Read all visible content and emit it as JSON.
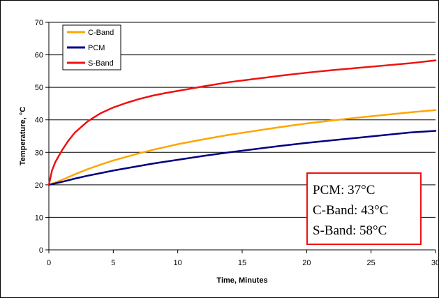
{
  "chart_data": {
    "type": "line",
    "title": "",
    "xlabel": "Time, Minutes",
    "ylabel": "Temperature, °C",
    "xlim": [
      0,
      30
    ],
    "ylim": [
      0,
      70
    ],
    "x_ticks": [
      0,
      5,
      10,
      15,
      20,
      25,
      30
    ],
    "y_ticks": [
      0,
      10,
      20,
      30,
      40,
      50,
      60,
      70
    ],
    "grid": "horizontal",
    "legend_position": "top-left",
    "series": [
      {
        "name": "C-Band",
        "color": "#FFA500",
        "x": [
          0,
          1,
          2,
          3,
          4,
          5,
          6,
          7,
          8,
          9,
          10,
          12,
          14,
          16,
          18,
          20,
          22,
          24,
          26,
          28,
          30
        ],
        "values": [
          20,
          21.5,
          23.2,
          24.8,
          26.2,
          27.5,
          28.6,
          29.7,
          30.7,
          31.6,
          32.5,
          34.0,
          35.4,
          36.6,
          37.8,
          38.9,
          39.8,
          40.7,
          41.5,
          42.3,
          43.0
        ]
      },
      {
        "name": "PCM",
        "color": "#000080",
        "x": [
          0,
          1,
          2,
          3,
          4,
          5,
          6,
          7,
          8,
          9,
          10,
          12,
          14,
          16,
          18,
          20,
          22,
          24,
          26,
          28,
          30
        ],
        "values": [
          20,
          20.9,
          21.9,
          22.8,
          23.6,
          24.4,
          25.1,
          25.8,
          26.5,
          27.1,
          27.7,
          28.9,
          30.0,
          31.0,
          32.0,
          32.9,
          33.7,
          34.5,
          35.3,
          36.1,
          36.6
        ]
      },
      {
        "name": "S-Band",
        "color": "#EE1111",
        "x": [
          0,
          0.25,
          0.5,
          1,
          1.5,
          2,
          3,
          4,
          5,
          6,
          7,
          8,
          9,
          10,
          12,
          14,
          16,
          18,
          20,
          22,
          24,
          26,
          28,
          30
        ],
        "values": [
          20,
          24.5,
          27,
          30.5,
          33.5,
          36,
          39.5,
          42,
          43.8,
          45.2,
          46.4,
          47.4,
          48.2,
          48.9,
          50.3,
          51.6,
          52.6,
          53.6,
          54.5,
          55.3,
          56.0,
          56.7,
          57.4,
          58.3
        ]
      }
    ],
    "annotation": {
      "lines": [
        "PCM: 37°C",
        "C-Band: 43°C",
        "S-Band: 58°C"
      ],
      "border_color": "#EE1111"
    }
  }
}
